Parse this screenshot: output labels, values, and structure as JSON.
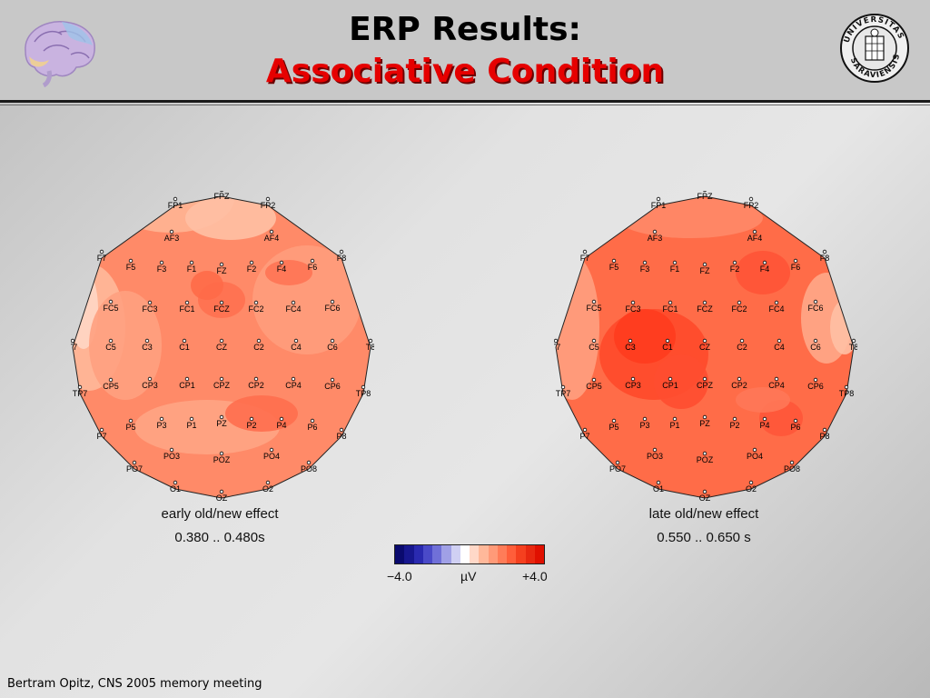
{
  "slide": {
    "title_line1": "ERP Results:",
    "title_line2": "Associative Condition",
    "footer": "Bertram Opitz, CNS 2005 memory meeting"
  },
  "maps": [
    {
      "caption_line1": "early old/new effect",
      "caption_line2": "0.380 .. 0.480s"
    },
    {
      "caption_line1": "late old/new effect",
      "caption_line2": "0.550 .. 0.650 s"
    }
  ],
  "electrodes": [
    "FPZ",
    "FP1",
    "FP2",
    "AF3",
    "AF4",
    "F7",
    "F5",
    "F3",
    "F1",
    "FZ",
    "F2",
    "F4",
    "F6",
    "F8",
    "FC5",
    "FC3",
    "FC1",
    "FCZ",
    "FC2",
    "FC4",
    "FC6",
    "T7",
    "C5",
    "C3",
    "C1",
    "CZ",
    "C2",
    "C4",
    "C6",
    "T8",
    "TP7",
    "CP5",
    "CP3",
    "CP1",
    "CPZ",
    "CP2",
    "CP4",
    "CP6",
    "TP8",
    "P7",
    "P5",
    "P3",
    "P1",
    "PZ",
    "P2",
    "P4",
    "P6",
    "P8",
    "PO7",
    "PO3",
    "POZ",
    "PO4",
    "PO8",
    "O1",
    "OZ",
    "O2"
  ],
  "colorbar": {
    "min_label": "−4.0",
    "unit_label": "µV",
    "max_label": "+4.0",
    "colors": [
      "#0a0a6e",
      "#17178f",
      "#2a2ab0",
      "#4a4ac8",
      "#7070d8",
      "#a0a0e6",
      "#d0d0f3",
      "#ffffff",
      "#ffd8c8",
      "#ffb89a",
      "#ff9a78",
      "#ff7c58",
      "#ff5e3a",
      "#f5401f",
      "#e82810",
      "#e01000"
    ]
  },
  "logos": {
    "seal_text": "UNIVERSITAS SARAVIENSIS"
  }
}
